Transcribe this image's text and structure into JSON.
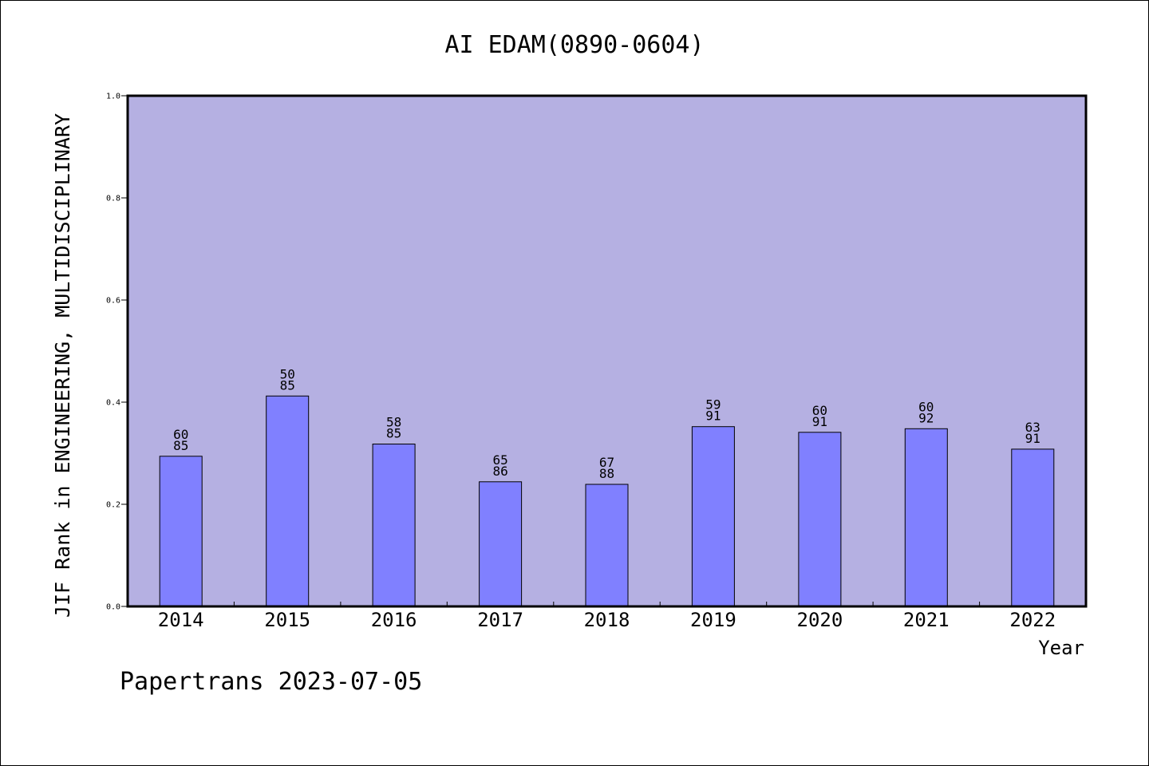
{
  "chart_data": {
    "type": "bar",
    "title": "AI EDAM(0890-0604)",
    "xlabel": "Year",
    "ylabel": "JIF Rank in ENGINEERING, MULTIDISCIPLINARY",
    "ylim": [
      0,
      1
    ],
    "yticks": [
      "0.0",
      "0.2",
      "0.4",
      "0.6",
      "0.8",
      "1.0"
    ],
    "grid": false,
    "categories": [
      "2014",
      "2015",
      "2016",
      "2017",
      "2018",
      "2019",
      "2020",
      "2021",
      "2022"
    ],
    "values": [
      0.294,
      0.412,
      0.318,
      0.244,
      0.239,
      0.352,
      0.341,
      0.348,
      0.308
    ],
    "bar_labels": [
      [
        "60",
        "85"
      ],
      [
        "50",
        "85"
      ],
      [
        "58",
        "85"
      ],
      [
        "65",
        "86"
      ],
      [
        "67",
        "88"
      ],
      [
        "59",
        "91"
      ],
      [
        "60",
        "91"
      ],
      [
        "60",
        "92"
      ],
      [
        "63",
        "91"
      ]
    ],
    "colors": {
      "plot_background": "#b5b0e2",
      "bar_fill": "#8080ff",
      "bar_edge": "#000000"
    }
  },
  "footer": "Papertrans 2023-07-05"
}
